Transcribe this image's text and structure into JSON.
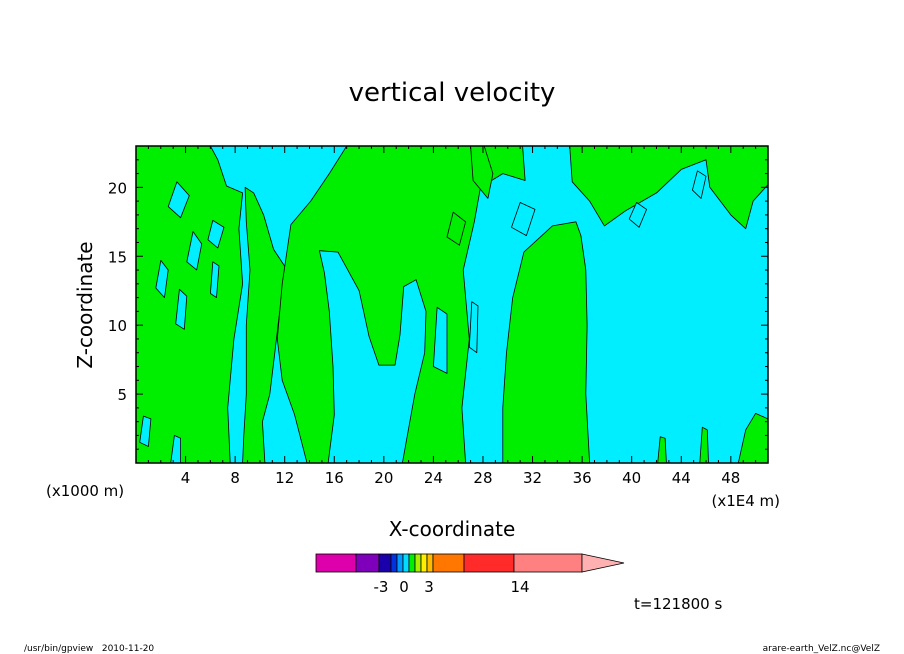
{
  "chart_data": {
    "type": "contour",
    "title": "vertical velocity",
    "xlabel": "X-coordinate",
    "ylabel": "Z-coordinate",
    "x_unit_left": "(x1000 m)",
    "x_unit_right": "(x1E4 m)",
    "xlim": [
      0,
      51
    ],
    "ylim": [
      0,
      23
    ],
    "x_ticks": [
      "4",
      "8",
      "12",
      "16",
      "20",
      "24",
      "28",
      "32",
      "36",
      "40",
      "44",
      "48"
    ],
    "y_ticks": [
      "5",
      "10",
      "15",
      "20"
    ],
    "fill_colors": {
      "positive": "#00ee00",
      "negative": "#00eeff"
    },
    "regions_positive_approx": [
      {
        "x": [
          0,
          8
        ],
        "z": [
          0,
          23
        ]
      },
      {
        "x": [
          8.5,
          13
        ],
        "z": [
          3,
          20
        ]
      },
      {
        "x": [
          13,
          21
        ],
        "z": [
          0,
          16
        ]
      },
      {
        "x": [
          16,
          29
        ],
        "z": [
          8,
          23
        ]
      },
      {
        "x": [
          29.5,
          36
        ],
        "z": [
          0,
          16
        ]
      },
      {
        "x": [
          35,
          47
        ],
        "z": [
          15,
          23
        ]
      },
      {
        "x": [
          48,
          51
        ],
        "z": [
          0,
          4
        ]
      }
    ],
    "colorbar": {
      "colors": [
        "#dd00aa",
        "#7f00bb",
        "#1a00aa",
        "#0033dd",
        "#0099ff",
        "#00ddff",
        "#00ee00",
        "#aaee00",
        "#ffee00",
        "#ffbb00",
        "#ff7700",
        "#ff2a2a",
        "#ff8080",
        "#ffb0b0"
      ],
      "labels": [
        "-3",
        "0",
        "3",
        "14"
      ]
    },
    "time_label": "t=121800 s",
    "footer_left": "/usr/bin/gpview   2010-11-20",
    "footer_right": "arare-earth_VelZ.nc@VelZ"
  }
}
